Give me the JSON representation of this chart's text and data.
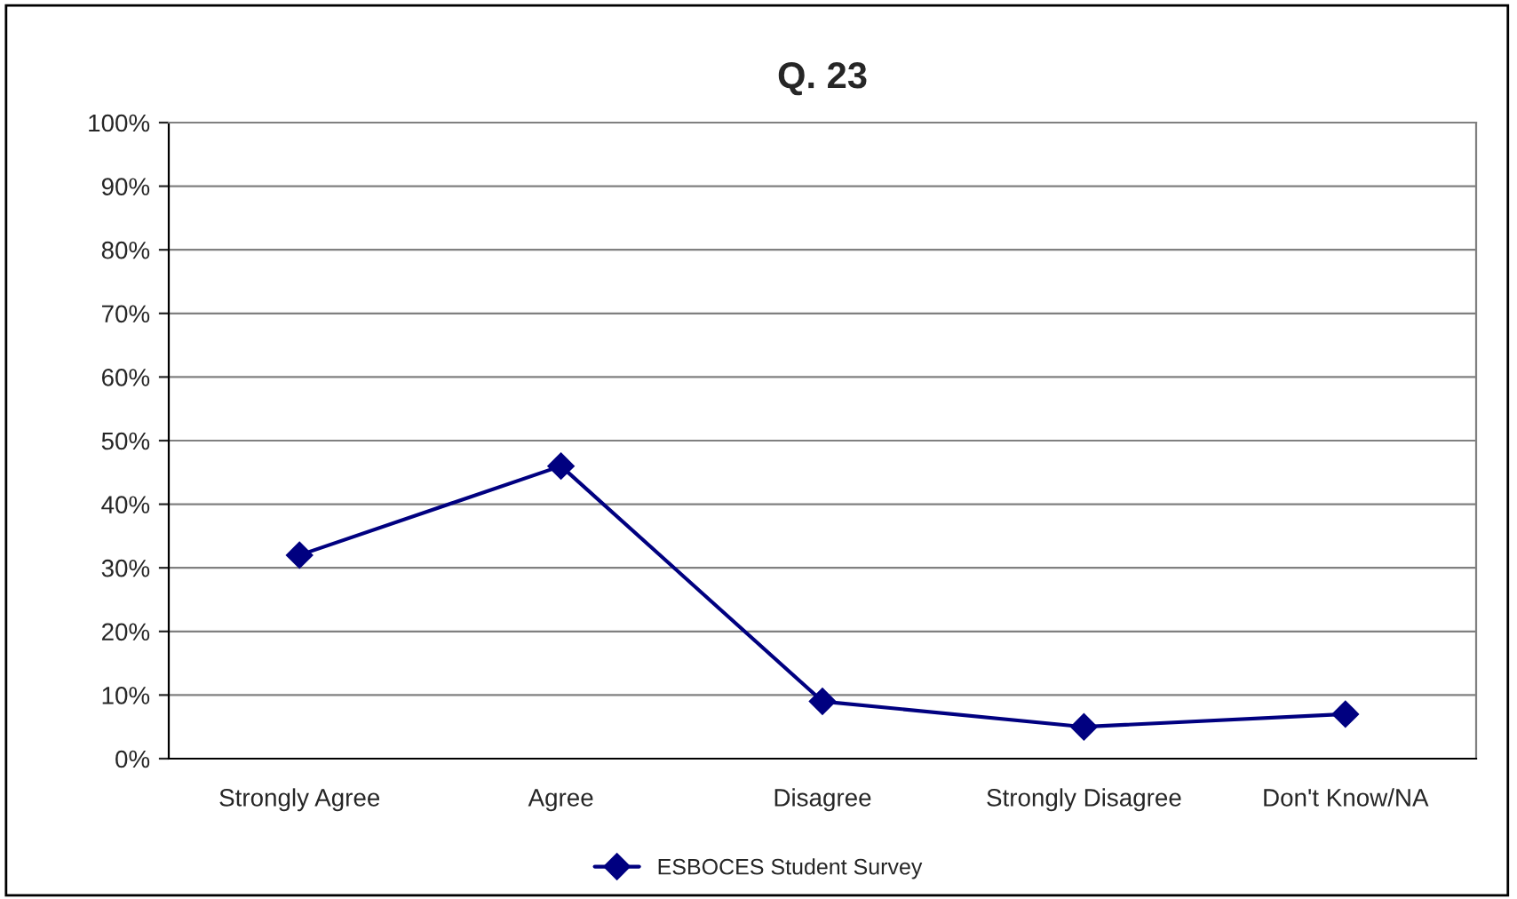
{
  "chart_data": {
    "type": "line",
    "title": "Q. 23",
    "categories": [
      "Strongly Agree",
      "Agree",
      "Disagree",
      "Strongly Disagree",
      "Don't Know/NA"
    ],
    "series": [
      {
        "name": "ESBOCES Student Survey",
        "color": "#000080",
        "values": [
          32,
          46,
          9,
          5,
          7
        ]
      }
    ],
    "ylim": [
      0,
      100
    ],
    "yticks": [
      {
        "value": 0,
        "label": "0%"
      },
      {
        "value": 10,
        "label": "10%"
      },
      {
        "value": 20,
        "label": "20%"
      },
      {
        "value": 30,
        "label": "30%"
      },
      {
        "value": 40,
        "label": "40%"
      },
      {
        "value": 50,
        "label": "50%"
      },
      {
        "value": 60,
        "label": "60%"
      },
      {
        "value": 70,
        "label": "70%"
      },
      {
        "value": 80,
        "label": "80%"
      },
      {
        "value": 90,
        "label": "90%"
      },
      {
        "value": 100,
        "label": "100%"
      }
    ],
    "grid": "y",
    "legend": "bottom",
    "marker": "diamond",
    "line_style": "solid"
  }
}
